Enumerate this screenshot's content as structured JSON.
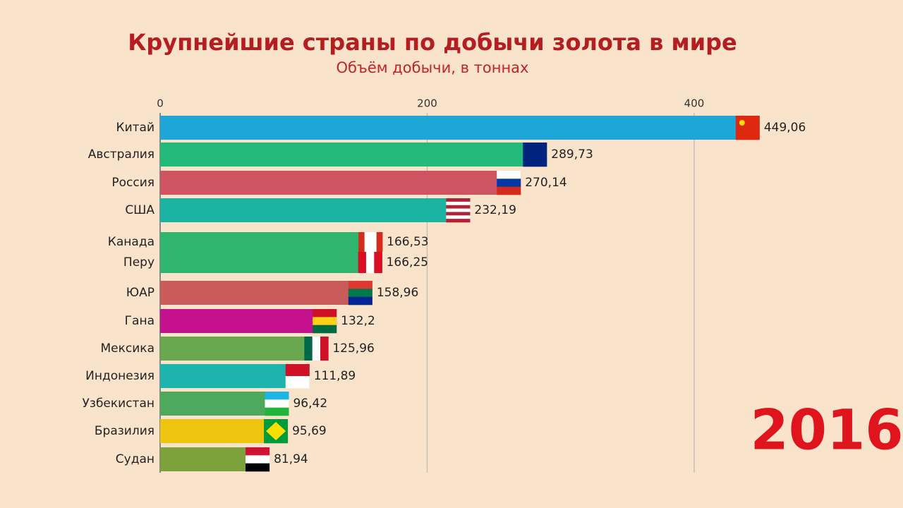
{
  "chart_data": {
    "type": "bar",
    "title": "Крупнейшие страны по добычи золота в мире",
    "subtitle": "Объём добычи, в тоннах",
    "annotation": "2016",
    "categories": [
      "Китай",
      "Австралия",
      "Россия",
      "США",
      "Канада",
      "Перу",
      "ЮАР",
      "Гана",
      "Мексика",
      "Индонезия",
      "Узбекистан",
      "Бразилия",
      "Судан"
    ],
    "values": [
      449.06,
      289.73,
      270.14,
      232.19,
      166.53,
      166.25,
      158.96,
      132.2,
      125.96,
      111.89,
      96.42,
      95.69,
      81.94
    ],
    "value_labels": [
      "449,06",
      "289,73",
      "270,14",
      "232,19",
      "166,53",
      "166,25",
      "158,96",
      "132,2",
      "125,96",
      "111,89",
      "96,42",
      "95,69",
      "81,94"
    ],
    "colors": [
      "#1fa6d8",
      "#22b97a",
      "#cf5461",
      "#1bb3a1",
      "#30b56f",
      "#30b56f",
      "#c95b5b",
      "#c5118e",
      "#6aa84f",
      "#1db4ae",
      "#4da95b",
      "#efc40f",
      "#7ea23b"
    ],
    "xlim": [
      0,
      450
    ],
    "xticks": [
      0,
      200,
      400
    ],
    "grid": true
  }
}
